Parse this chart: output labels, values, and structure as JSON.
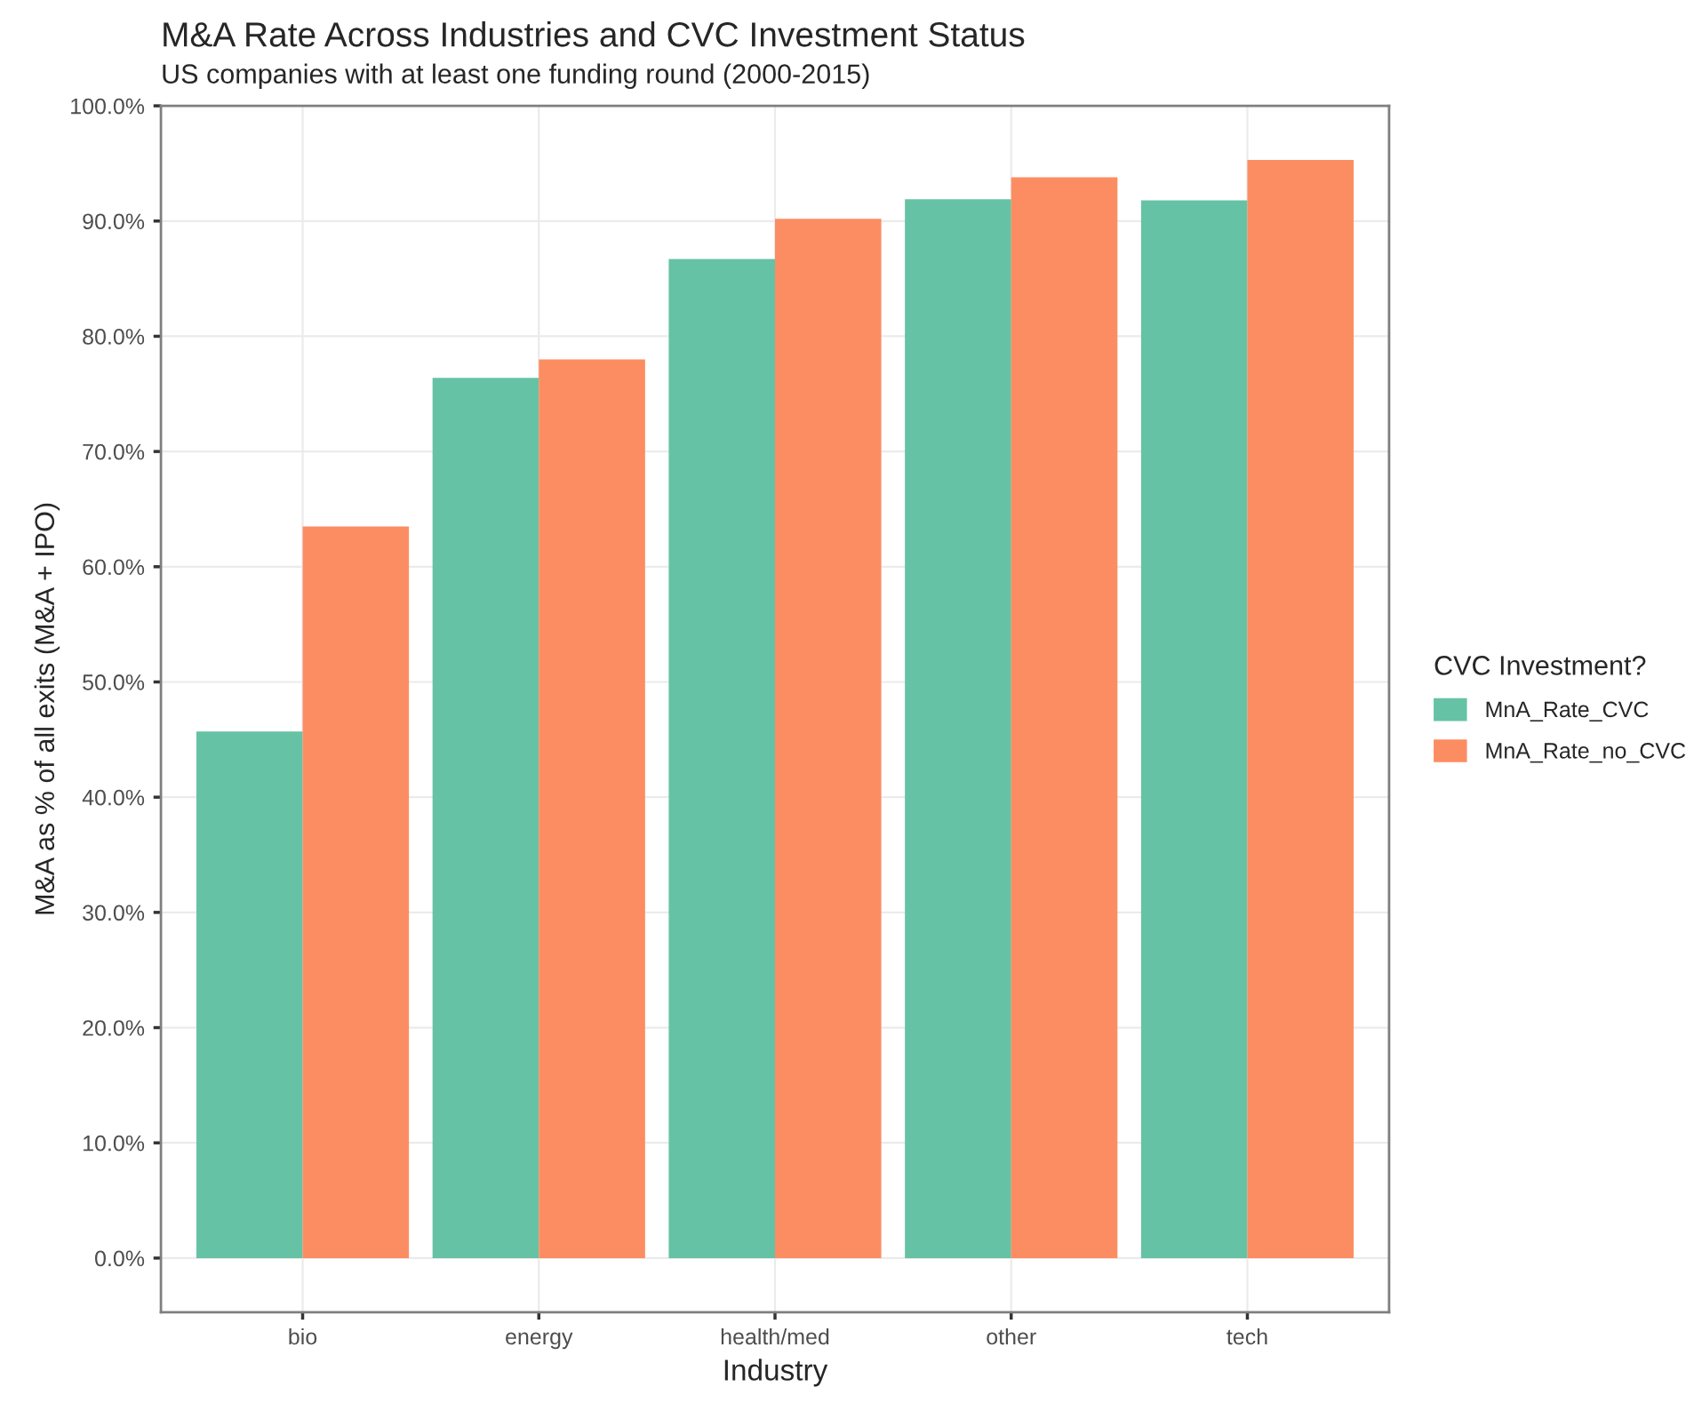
{
  "chart_data": {
    "type": "bar",
    "title": "M&A Rate Across Industries and CVC Investment Status",
    "subtitle": "US companies with at least one funding round (2000-2015)",
    "xlabel": "Industry",
    "ylabel": "M&A as % of all exits (M&A + IPO)",
    "legend_title": "CVC Investment?",
    "categories": [
      "bio",
      "energy",
      "health/med",
      "other",
      "tech"
    ],
    "series": [
      {
        "name": "MnA_Rate_CVC",
        "color": "#66c2a5",
        "values": [
          45.7,
          76.4,
          86.7,
          91.9,
          91.8
        ]
      },
      {
        "name": "MnA_Rate_no_CVC",
        "color": "#fc8d62",
        "values": [
          63.5,
          78.0,
          90.2,
          93.8,
          95.3
        ]
      }
    ],
    "ylim": [
      -4.7,
      100
    ],
    "yticks": [
      {
        "value": 0,
        "label": "0.0%"
      },
      {
        "value": 10,
        "label": "10.0%"
      },
      {
        "value": 20,
        "label": "20.0%"
      },
      {
        "value": 30,
        "label": "30.0%"
      },
      {
        "value": 40,
        "label": "40.0%"
      },
      {
        "value": 50,
        "label": "50.0%"
      },
      {
        "value": 60,
        "label": "60.0%"
      },
      {
        "value": 70,
        "label": "70.0%"
      },
      {
        "value": 80,
        "label": "80.0%"
      },
      {
        "value": 90,
        "label": "90.0%"
      },
      {
        "value": 100,
        "label": "100.0%"
      }
    ],
    "grid": true,
    "legend": "right"
  }
}
